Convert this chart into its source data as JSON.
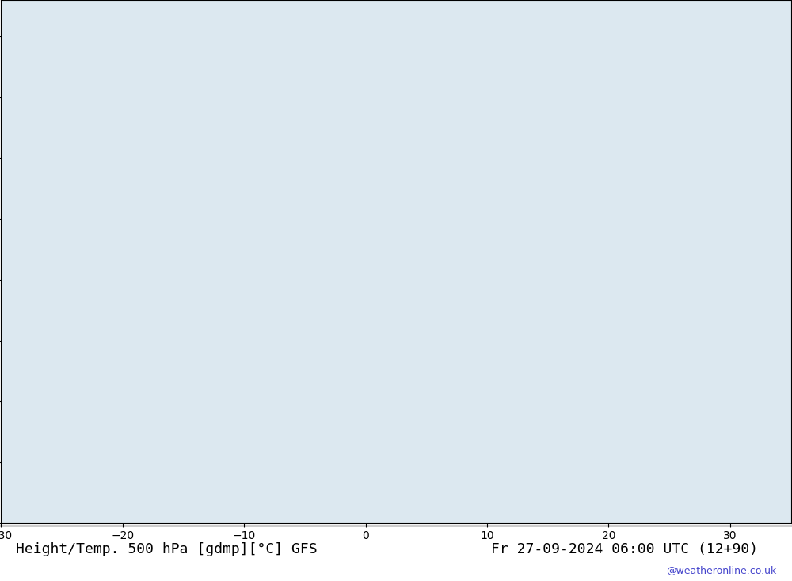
{
  "title_left": "Height/Temp. 500 hPa [gdmp][°C] GFS",
  "title_right": "Fr 27-09-2024 06:00 UTC (12+90)",
  "watermark": "@weatheronline.co.uk",
  "background_color": "#e8e8e8",
  "land_color_low": "#d8d8d8",
  "land_color_high": "#c8ffc8",
  "sea_color": "#e0e8f0",
  "map_extent": [
    -30,
    35,
    30,
    72
  ],
  "figsize": [
    10,
    7.33
  ],
  "dpi": 100
}
